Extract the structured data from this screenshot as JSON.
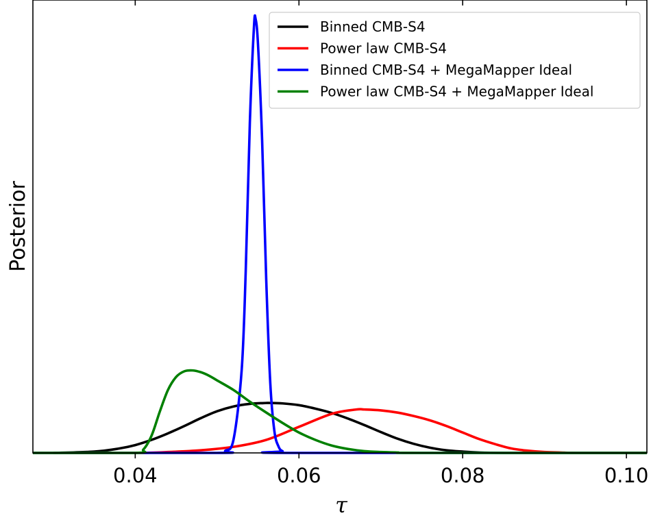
{
  "chart_data": {
    "type": "line",
    "title": "",
    "xlabel": "τ",
    "ylabel": "Posterior",
    "xlim": [
      0.0275,
      0.1025
    ],
    "ylim": [
      0,
      1.04
    ],
    "xticks": [
      0.04,
      0.06,
      0.08,
      0.1
    ],
    "xtick_labels": [
      "0.04",
      "0.06",
      "0.08",
      "0.10"
    ],
    "yticks_visible": false,
    "grid": false,
    "legend_position": "top-right",
    "series": [
      {
        "name": "Binned CMB-S4",
        "color": "#000000",
        "x": [
          0.03,
          0.035,
          0.038,
          0.04,
          0.042,
          0.044,
          0.046,
          0.048,
          0.05,
          0.052,
          0.054,
          0.056,
          0.0565,
          0.058,
          0.06,
          0.062,
          0.064,
          0.066,
          0.068,
          0.07,
          0.072,
          0.074,
          0.076,
          0.078,
          0.08,
          0.082,
          0.085,
          0.09,
          0.1025
        ],
        "y": [
          0.0,
          0.003,
          0.01,
          0.018,
          0.03,
          0.045,
          0.062,
          0.08,
          0.096,
          0.107,
          0.113,
          0.115,
          0.115,
          0.114,
          0.11,
          0.102,
          0.092,
          0.079,
          0.064,
          0.048,
          0.033,
          0.021,
          0.012,
          0.006,
          0.003,
          0.001,
          0.0,
          0.0,
          0.0
        ]
      },
      {
        "name": "Power law CMB-S4",
        "color": "#ff0000",
        "x": [
          0.0275,
          0.04,
          0.044,
          0.048,
          0.052,
          0.056,
          0.06,
          0.064,
          0.067,
          0.068,
          0.07,
          0.072,
          0.074,
          0.076,
          0.078,
          0.08,
          0.082,
          0.084,
          0.086,
          0.088,
          0.09,
          0.092,
          0.094,
          0.1025
        ],
        "y": [
          0.0,
          0.0,
          0.002,
          0.006,
          0.014,
          0.03,
          0.06,
          0.09,
          0.1,
          0.1,
          0.098,
          0.093,
          0.085,
          0.075,
          0.062,
          0.047,
          0.032,
          0.02,
          0.01,
          0.005,
          0.002,
          0.001,
          0.0,
          0.0
        ]
      },
      {
        "name": "Binned CMB-S4 + MegaMapper Ideal",
        "color": "#0000ff",
        "x": [
          0.0275,
          0.05,
          0.051,
          0.052,
          0.053,
          0.0535,
          0.054,
          0.0545,
          0.0547,
          0.055,
          0.0555,
          0.056,
          0.0565,
          0.057,
          0.0575,
          0.058,
          0.059,
          0.1025
        ],
        "y": [
          0.0,
          0.0,
          0.005,
          0.03,
          0.19,
          0.42,
          0.76,
          0.98,
          1.0,
          0.94,
          0.72,
          0.4,
          0.16,
          0.05,
          0.015,
          0.004,
          0.0,
          0.0
        ]
      },
      {
        "name": "Power law CMB-S4 + MegaMapper Ideal",
        "color": "#008000",
        "x": [
          0.0275,
          0.04,
          0.041,
          0.042,
          0.043,
          0.044,
          0.045,
          0.046,
          0.047,
          0.048,
          0.049,
          0.05,
          0.052,
          0.054,
          0.056,
          0.058,
          0.06,
          0.062,
          0.064,
          0.066,
          0.068,
          0.07,
          0.072,
          0.075,
          0.1025
        ],
        "y": [
          0.0,
          0.0,
          0.008,
          0.04,
          0.095,
          0.145,
          0.175,
          0.188,
          0.19,
          0.186,
          0.178,
          0.167,
          0.145,
          0.118,
          0.093,
          0.069,
          0.047,
          0.03,
          0.017,
          0.009,
          0.004,
          0.002,
          0.001,
          0.0,
          0.0
        ]
      }
    ]
  }
}
